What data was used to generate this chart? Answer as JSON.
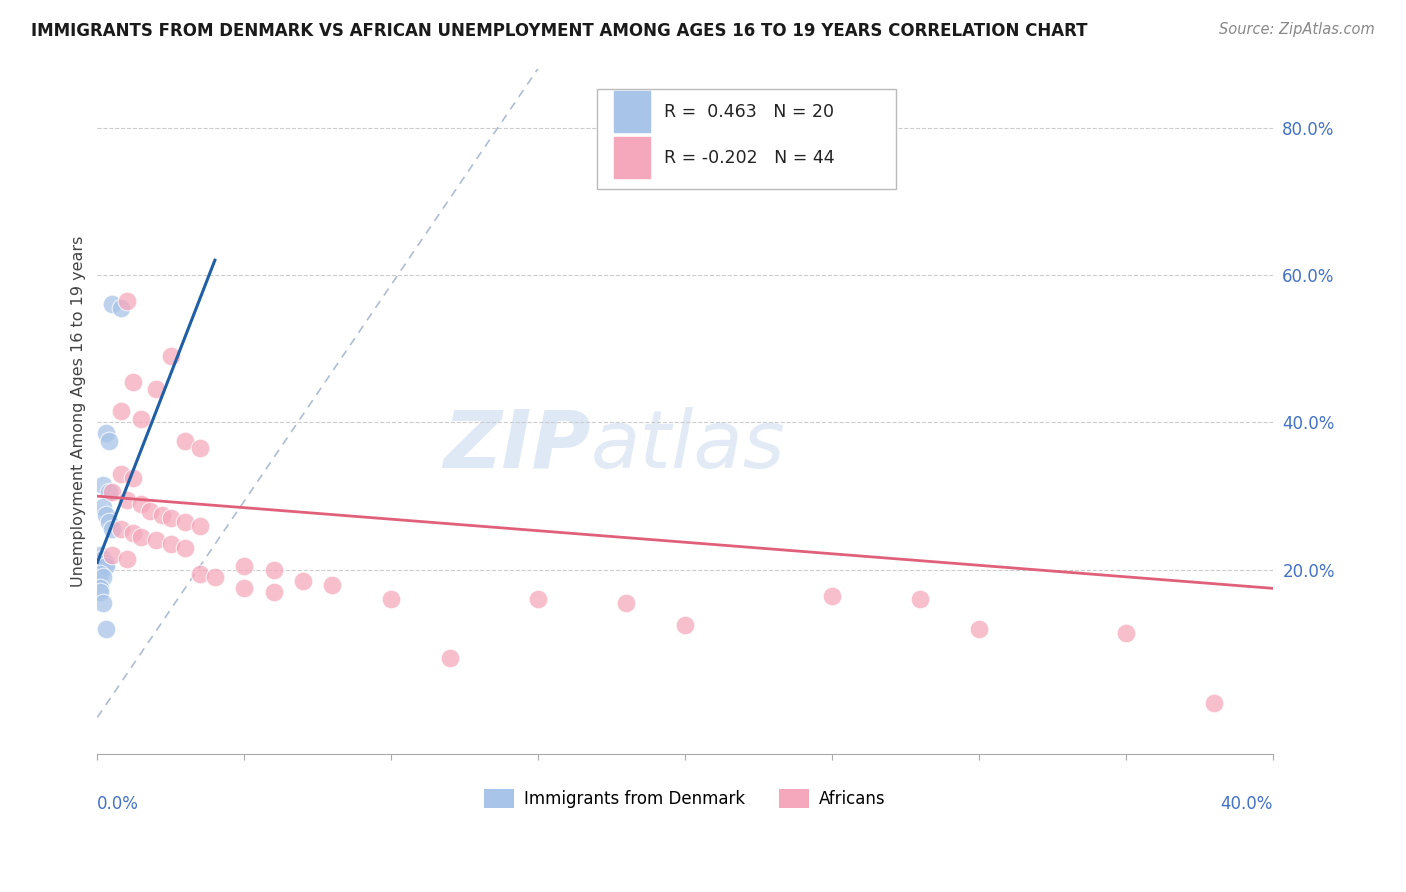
{
  "title": "IMMIGRANTS FROM DENMARK VS AFRICAN UNEMPLOYMENT AMONG AGES 16 TO 19 YEARS CORRELATION CHART",
  "source": "Source: ZipAtlas.com",
  "ylabel": "Unemployment Among Ages 16 to 19 years",
  "right_yticks": [
    "80.0%",
    "60.0%",
    "40.0%",
    "20.0%"
  ],
  "right_ytick_vals": [
    0.8,
    0.6,
    0.4,
    0.2
  ],
  "legend1_label": "Immigrants from Denmark",
  "legend2_label": "Africans",
  "R1": "0.463",
  "N1": "20",
  "R2": "-0.202",
  "N2": "44",
  "color_blue": "#a8c4e8",
  "color_blue_line": "#1f5fa6",
  "color_pink": "#f5a8bc",
  "color_pink_line": "#e0607a",
  "color_dashed": "#b0bcd0",
  "watermark_zip": "ZIP",
  "watermark_atlas": "atlas",
  "denmark_points": [
    [
      0.0005,
      0.56
    ],
    [
      0.0008,
      0.555
    ],
    [
      0.0003,
      0.385
    ],
    [
      0.0004,
      0.375
    ],
    [
      0.0002,
      0.315
    ],
    [
      0.0004,
      0.305
    ],
    [
      0.0002,
      0.285
    ],
    [
      0.0003,
      0.275
    ],
    [
      0.0004,
      0.265
    ],
    [
      0.0005,
      0.255
    ],
    [
      0.0001,
      0.22
    ],
    [
      0.0002,
      0.215
    ],
    [
      0.0003,
      0.21
    ],
    [
      0.0003,
      0.205
    ],
    [
      0.0001,
      0.195
    ],
    [
      0.0002,
      0.19
    ],
    [
      0.0001,
      0.175
    ],
    [
      0.0001,
      0.17
    ],
    [
      0.0002,
      0.155
    ],
    [
      0.0003,
      0.12
    ]
  ],
  "african_points": [
    [
      0.001,
      0.565
    ],
    [
      0.0025,
      0.49
    ],
    [
      0.0012,
      0.455
    ],
    [
      0.002,
      0.445
    ],
    [
      0.0008,
      0.415
    ],
    [
      0.0015,
      0.405
    ],
    [
      0.003,
      0.375
    ],
    [
      0.0035,
      0.365
    ],
    [
      0.0008,
      0.33
    ],
    [
      0.0012,
      0.325
    ],
    [
      0.0005,
      0.305
    ],
    [
      0.001,
      0.295
    ],
    [
      0.0015,
      0.29
    ],
    [
      0.0018,
      0.28
    ],
    [
      0.0022,
      0.275
    ],
    [
      0.0025,
      0.27
    ],
    [
      0.003,
      0.265
    ],
    [
      0.0035,
      0.26
    ],
    [
      0.0008,
      0.255
    ],
    [
      0.0012,
      0.25
    ],
    [
      0.0015,
      0.245
    ],
    [
      0.002,
      0.24
    ],
    [
      0.0025,
      0.235
    ],
    [
      0.003,
      0.23
    ],
    [
      0.0005,
      0.22
    ],
    [
      0.001,
      0.215
    ],
    [
      0.005,
      0.205
    ],
    [
      0.006,
      0.2
    ],
    [
      0.0035,
      0.195
    ],
    [
      0.004,
      0.19
    ],
    [
      0.007,
      0.185
    ],
    [
      0.008,
      0.18
    ],
    [
      0.005,
      0.175
    ],
    [
      0.006,
      0.17
    ],
    [
      0.01,
      0.16
    ],
    [
      0.012,
      0.08
    ],
    [
      0.015,
      0.16
    ],
    [
      0.018,
      0.155
    ],
    [
      0.025,
      0.165
    ],
    [
      0.028,
      0.16
    ],
    [
      0.02,
      0.125
    ],
    [
      0.03,
      0.12
    ],
    [
      0.035,
      0.115
    ],
    [
      0.038,
      0.02
    ]
  ],
  "xlim": [
    0.0,
    0.04
  ],
  "ylim": [
    -0.05,
    0.88
  ],
  "blue_line_x0": 0.0,
  "blue_line_y0": 0.21,
  "blue_line_x1": 0.004,
  "blue_line_y1": 0.62,
  "pink_line_x0": 0.0,
  "pink_line_y0": 0.3,
  "pink_line_x1": 0.04,
  "pink_line_y1": 0.175,
  "dash_line_x0": 0.0,
  "dash_line_y0": 0.0,
  "dash_line_x1": 0.015,
  "dash_line_y1": 0.88
}
